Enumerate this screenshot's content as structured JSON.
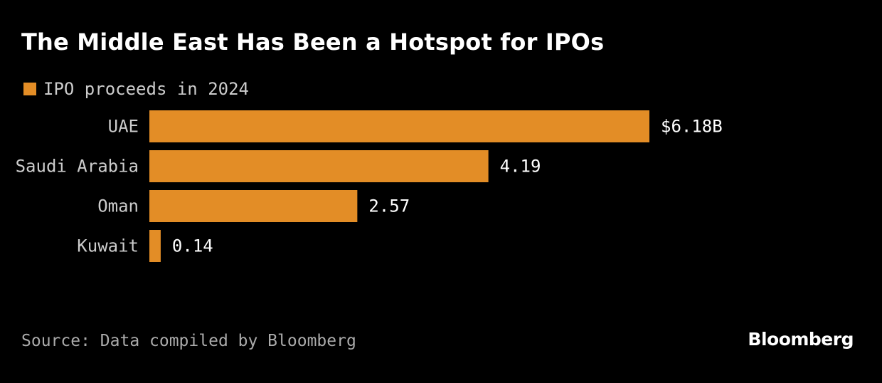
{
  "colors": {
    "background": "#000000",
    "bar": "#e38d26"
  },
  "chart_data": {
    "type": "bar",
    "orientation": "horizontal",
    "title": "The Middle East Has Been a Hotspot for IPOs",
    "legend": [
      "IPO proceeds in 2024"
    ],
    "categories": [
      "UAE",
      "Saudi Arabia",
      "Oman",
      "Kuwait"
    ],
    "values": [
      6.18,
      4.19,
      2.57,
      0.14
    ],
    "value_labels": [
      "$6.18B",
      "4.19",
      "2.57",
      "0.14"
    ],
    "unit": "billion USD",
    "xlabel": "",
    "ylabel": "",
    "xlim": [
      0,
      6.18
    ],
    "grid": false
  },
  "footer": {
    "source": "Source: Data compiled by Bloomberg",
    "brand": "Bloomberg"
  }
}
